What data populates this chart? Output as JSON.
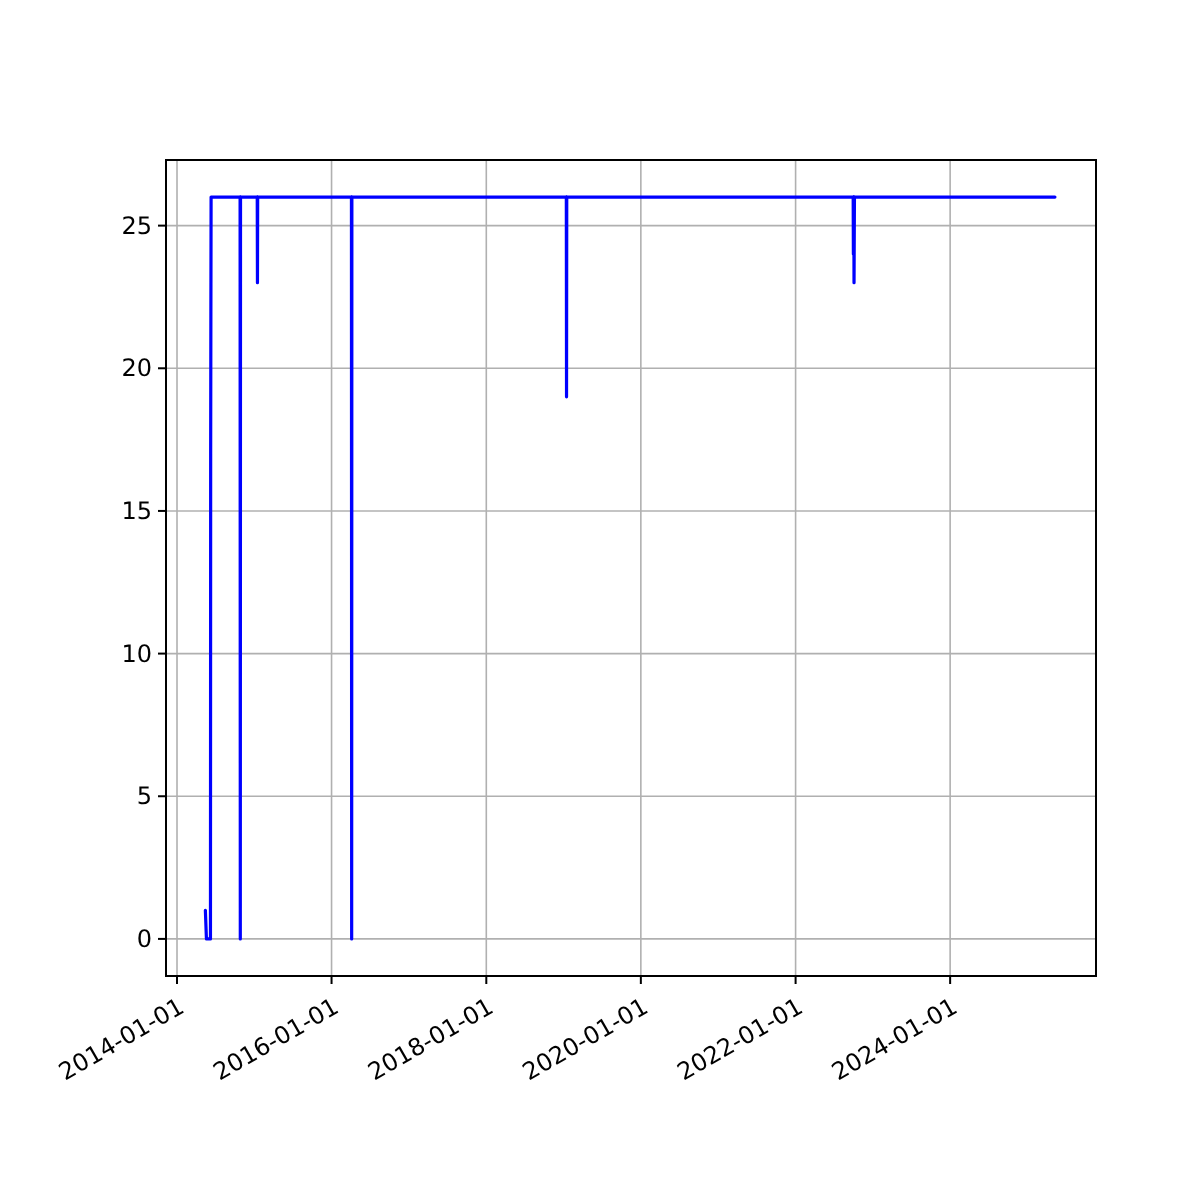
{
  "chart_data": {
    "type": "line",
    "xlim": [
      "2013-11-10",
      "2025-11-20"
    ],
    "ylim": [
      -1.3,
      27.3
    ],
    "xticks": [
      "2014-01-01",
      "2016-01-01",
      "2018-01-01",
      "2020-01-01",
      "2022-01-01",
      "2024-01-01"
    ],
    "yticks": [
      0,
      5,
      10,
      15,
      20,
      25
    ],
    "grid": true,
    "marker": "none",
    "line_style": "solid",
    "series": [
      {
        "color": "#0000ff",
        "x": [
          "2014-05-15",
          "2014-05-20",
          "2014-06-08",
          "2014-06-09",
          "2014-06-10",
          "2014-06-11",
          "2014-10-26",
          "2014-10-27",
          "2014-10-28",
          "2015-01-15",
          "2015-01-16",
          "2015-01-17",
          "2016-04-04",
          "2016-04-05",
          "2016-04-06",
          "2019-01-14",
          "2019-01-15",
          "2019-01-16",
          "2022-09-30",
          "2022-10-01",
          "2022-10-03",
          "2022-10-04",
          "2022-10-06",
          "2025-05-10"
        ],
        "values": [
          1,
          0,
          0,
          17,
          22,
          26,
          26,
          0,
          26,
          26,
          23,
          26,
          26,
          0,
          26,
          26,
          19,
          26,
          26,
          24,
          26,
          23,
          26,
          26
        ]
      }
    ]
  }
}
